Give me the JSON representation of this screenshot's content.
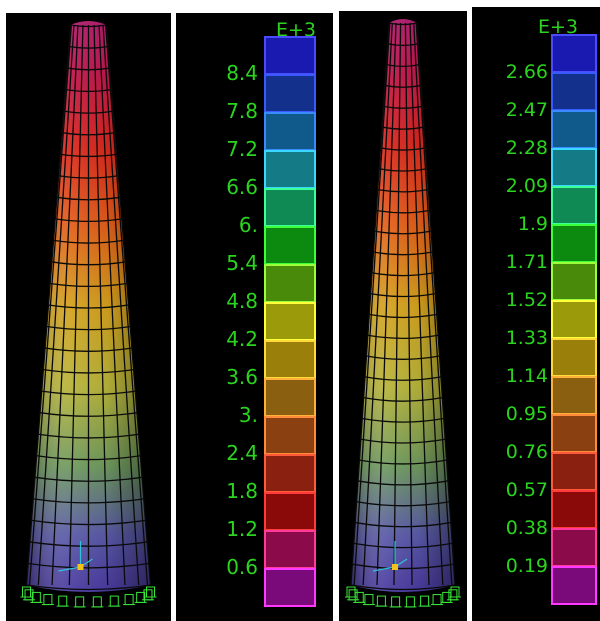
{
  "legend_a": {
    "exponent": "E+3",
    "labels": [
      "8.4",
      "7.8",
      "7.2",
      "6.6",
      "6.",
      "5.4",
      "4.8",
      "4.2",
      "3.6",
      "3.",
      "2.4",
      "1.8",
      "1.2",
      "0.6"
    ]
  },
  "legend_b": {
    "exponent": "E+3",
    "labels": [
      "2.66",
      "2.47",
      "2.28",
      "2.09",
      "1.9",
      "1.71",
      "1.52",
      "1.33",
      "1.14",
      "0.95",
      "0.76",
      "0.57",
      "0.38",
      "0.19"
    ]
  },
  "colors": {
    "background": "#000000",
    "mesh": "#0a0a0a",
    "label_text": "#2bd41f",
    "support": "#39e639",
    "axis": "#2fc3d6",
    "origin": "#f2c21b",
    "scale_fills": [
      "#1a1ab0",
      "#12308c",
      "#0f5a8a",
      "#137a86",
      "#0f8a55",
      "#0c8a10",
      "#4a8a0a",
      "#9a9a0a",
      "#9a800a",
      "#8a6010",
      "#8a4010",
      "#8a2010",
      "#8a0a0a",
      "#8a0a4a",
      "#7a0a7a"
    ],
    "scale_borders": [
      "#4a4aff",
      "#3a5aff",
      "#3a8aff",
      "#3ad8ff",
      "#3aff9a",
      "#3aff3a",
      "#9aff3a",
      "#ffff3a",
      "#ffd83a",
      "#ffb03a",
      "#ff8a3a",
      "#ff5a3a",
      "#ff3a3a",
      "#ff3a9a",
      "#ff3aff"
    ]
  }
}
